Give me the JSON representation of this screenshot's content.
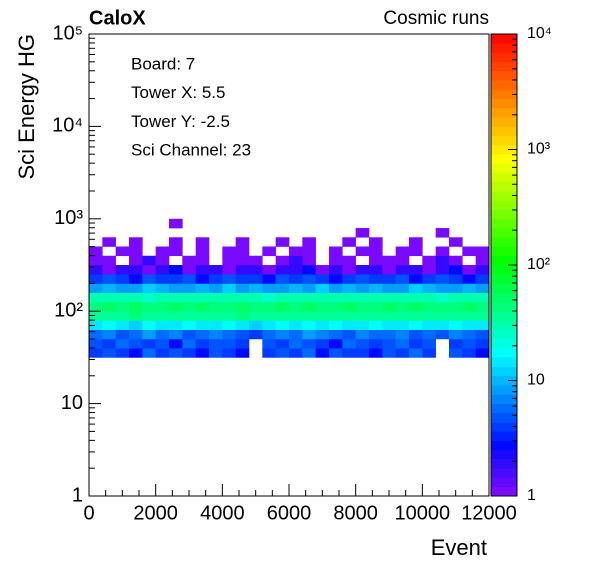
{
  "chart_data": {
    "type": "heatmap",
    "title": "CaloX",
    "subtitle": "Cosmic runs",
    "x_label": "Event",
    "y_label": "Sci Energy HG",
    "annotations": [
      "Board: 7",
      "Tower X: 5.5",
      "Tower Y: -2.5",
      "Sci Channel: 23"
    ],
    "xlim": [
      0,
      12000
    ],
    "xticks": [
      0,
      2000,
      4000,
      6000,
      8000,
      10000,
      12000
    ],
    "ylim": [
      1,
      100000
    ],
    "y_log": true,
    "yticks": [
      1,
      10,
      {
        "value": 100,
        "label": "10²"
      },
      {
        "value": 1000,
        "label": "10³"
      },
      {
        "value": 10000,
        "label": "10⁴"
      },
      {
        "value": 100000,
        "label": "10⁵"
      }
    ],
    "zlim": [
      1,
      10000
    ],
    "z_log": true,
    "zticks": [
      1,
      10,
      {
        "value": 100,
        "label": "10²"
      },
      {
        "value": 1000,
        "label": "10³"
      },
      {
        "value": 10000,
        "label": "10⁴"
      }
    ],
    "x_bins": [
      0,
      400,
      800,
      1200,
      1600,
      2000,
      2400,
      2800,
      3200,
      3600,
      4000,
      4400,
      4800,
      5200,
      5600,
      6000,
      6400,
      6800,
      7200,
      7600,
      8000,
      8400,
      8800,
      9200,
      9600,
      10000,
      10400,
      10800,
      11200,
      11600,
      12000
    ],
    "y_bins": [
      31.6,
      39.8,
      50.1,
      63.1,
      79.4,
      100,
      125.9,
      158.5,
      199.5,
      251.2,
      316.2,
      398.1,
      501.2,
      631,
      794.3,
      1000
    ],
    "z": [
      [
        4,
        5,
        4,
        3,
        6,
        4,
        5,
        4,
        3,
        5,
        4,
        3,
        null,
        4,
        5,
        4,
        6,
        3,
        5,
        4,
        4,
        3,
        5,
        4,
        6,
        4,
        null,
        5,
        4,
        3
      ],
      [
        5,
        4,
        6,
        5,
        4,
        5,
        3,
        6,
        4,
        5,
        5,
        4,
        null,
        5,
        4,
        6,
        5,
        4,
        3,
        6,
        5,
        4,
        5,
        6,
        4,
        5,
        null,
        4,
        5,
        4
      ],
      [
        6,
        7,
        5,
        6,
        8,
        6,
        7,
        5,
        6,
        7,
        6,
        5,
        4,
        6,
        7,
        6,
        8,
        7,
        6,
        5,
        7,
        6,
        6,
        7,
        5,
        6,
        5,
        7,
        6,
        5
      ],
      [
        14,
        16,
        15,
        13,
        17,
        15,
        14,
        16,
        15,
        14,
        16,
        15,
        13,
        15,
        16,
        14,
        17,
        15,
        16,
        14,
        15,
        16,
        14,
        15,
        17,
        15,
        14,
        16,
        15,
        14
      ],
      [
        35,
        38,
        36,
        40,
        37,
        35,
        39,
        36,
        38,
        37,
        36,
        40,
        35,
        37,
        38,
        36,
        39,
        37,
        35,
        38,
        36,
        37,
        39,
        36,
        38,
        35,
        37,
        36,
        38,
        37
      ],
      [
        45,
        48,
        46,
        50,
        47,
        44,
        49,
        46,
        48,
        47,
        46,
        50,
        45,
        47,
        48,
        46,
        52,
        47,
        45,
        48,
        46,
        47,
        49,
        46,
        48,
        45,
        47,
        46,
        48,
        47
      ],
      [
        28,
        30,
        29,
        31,
        27,
        30,
        28,
        29,
        31,
        30,
        28,
        29,
        30,
        27,
        29,
        31,
        28,
        30,
        29,
        28,
        30,
        29,
        31,
        28,
        30,
        29,
        27,
        30,
        29,
        28
      ],
      [
        9,
        10,
        8,
        9,
        11,
        10,
        9,
        8,
        10,
        9,
        11,
        9,
        10,
        8,
        9,
        10,
        9,
        11,
        8,
        10,
        9,
        10,
        8,
        9,
        11,
        10,
        9,
        8,
        10,
        9
      ],
      [
        4,
        5,
        4,
        3,
        5,
        4,
        4,
        5,
        3,
        4,
        5,
        4,
        4,
        3,
        5,
        4,
        5,
        4,
        3,
        4,
        5,
        4,
        4,
        5,
        3,
        4,
        5,
        4,
        3,
        4
      ],
      [
        2,
        1,
        2,
        2,
        1,
        2,
        3,
        1,
        2,
        2,
        1,
        2,
        2,
        1,
        2,
        2,
        3,
        1,
        2,
        1,
        2,
        2,
        1,
        2,
        2,
        1,
        2,
        3,
        1,
        2
      ],
      [
        1,
        1,
        null,
        1,
        2,
        1,
        null,
        1,
        1,
        null,
        1,
        1,
        1,
        null,
        1,
        2,
        1,
        null,
        1,
        1,
        null,
        1,
        1,
        1,
        null,
        1,
        2,
        1,
        null,
        1
      ],
      [
        1,
        null,
        1,
        1,
        null,
        1,
        1,
        null,
        1,
        null,
        1,
        1,
        null,
        1,
        null,
        1,
        1,
        null,
        1,
        null,
        1,
        1,
        null,
        1,
        1,
        null,
        1,
        null,
        1,
        1
      ],
      [
        null,
        1,
        null,
        1,
        null,
        null,
        1,
        null,
        1,
        null,
        null,
        1,
        null,
        null,
        1,
        null,
        1,
        null,
        null,
        1,
        null,
        1,
        null,
        null,
        1,
        null,
        null,
        1,
        null,
        null
      ],
      [
        null,
        null,
        null,
        null,
        null,
        null,
        null,
        null,
        null,
        null,
        null,
        null,
        null,
        null,
        null,
        null,
        null,
        null,
        null,
        null,
        1,
        null,
        null,
        null,
        null,
        null,
        1,
        null,
        null,
        null
      ],
      [
        null,
        null,
        null,
        null,
        null,
        null,
        1,
        null,
        null,
        null,
        null,
        null,
        null,
        null,
        null,
        null,
        null,
        null,
        null,
        null,
        null,
        null,
        null,
        null,
        null,
        null,
        null,
        null,
        null,
        null
      ]
    ]
  }
}
